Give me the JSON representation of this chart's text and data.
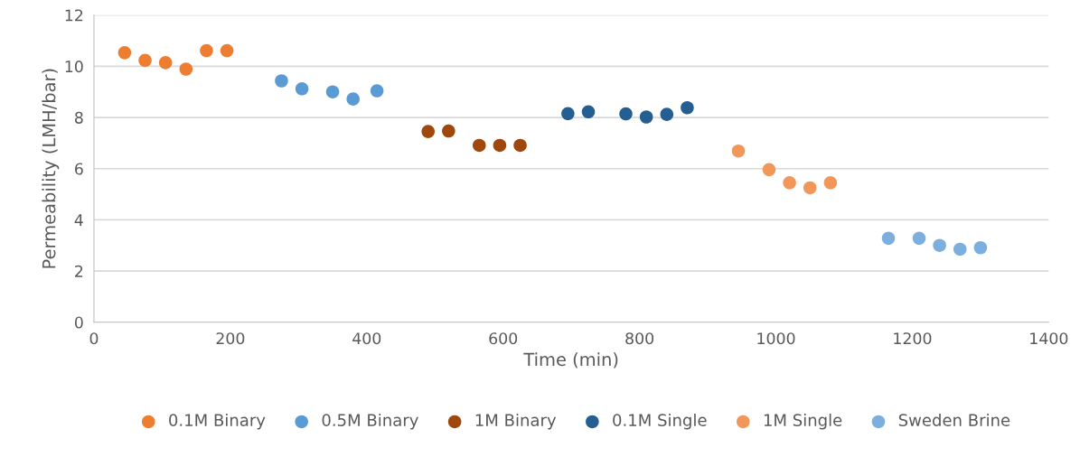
{
  "chart_data": {
    "type": "scatter",
    "xlabel": "Time (min)",
    "ylabel": "Permeability (LMH/bar)",
    "xlim": [
      0,
      1400
    ],
    "xticks": [
      0,
      200,
      400,
      600,
      800,
      1000,
      1200,
      1400
    ],
    "ylim": [
      0,
      12
    ],
    "yticks": [
      0,
      2,
      4,
      6,
      8,
      10,
      12
    ],
    "grid": "y",
    "legend": "bottom",
    "marker": "circle",
    "series": [
      {
        "name": "0.1M Binary",
        "color": "#ed7d31",
        "x": [
          45,
          75,
          105,
          135,
          165,
          195
        ],
        "values": [
          10.53,
          10.23,
          10.14,
          9.89,
          10.61,
          10.61
        ]
      },
      {
        "name": "0.5M Binary",
        "color": "#5b9bd5",
        "x": [
          275,
          305,
          350,
          380,
          415
        ],
        "values": [
          9.43,
          9.12,
          9.0,
          8.72,
          9.04
        ]
      },
      {
        "name": "1M Binary",
        "color": "#9e480e",
        "x": [
          490,
          520,
          565,
          595,
          625
        ],
        "values": [
          7.45,
          7.47,
          6.91,
          6.91,
          6.91
        ]
      },
      {
        "name": "0.1M Single",
        "color": "#255e91",
        "x": [
          695,
          725,
          780,
          810,
          840,
          870
        ],
        "values": [
          8.15,
          8.22,
          8.14,
          8.02,
          8.12,
          8.38
        ]
      },
      {
        "name": "1M Single",
        "color": "#f1975a",
        "x": [
          945,
          990,
          1020,
          1050,
          1080
        ],
        "values": [
          6.69,
          5.96,
          5.45,
          5.25,
          5.45
        ]
      },
      {
        "name": "Sweden Brine",
        "color": "#7cafdd",
        "x": [
          1165,
          1210,
          1240,
          1270,
          1300
        ],
        "values": [
          3.28,
          3.28,
          3.0,
          2.85,
          2.91
        ]
      }
    ]
  }
}
